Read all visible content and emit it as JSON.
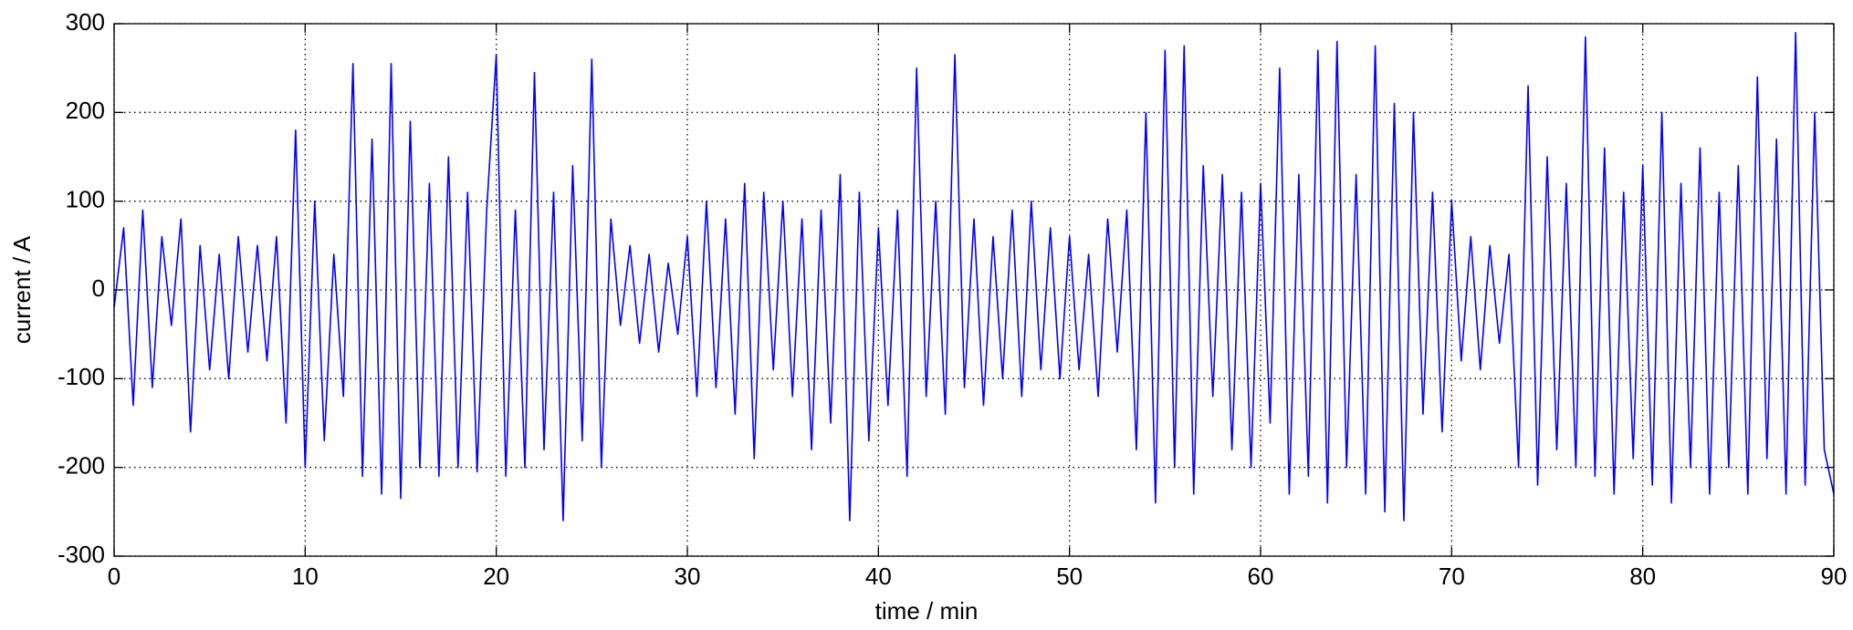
{
  "chart_data": {
    "type": "line",
    "xlabel": "time / min",
    "ylabel": "current / A",
    "xlim": [
      0,
      90
    ],
    "ylim": [
      -300,
      300
    ],
    "xticks": [
      0,
      10,
      20,
      30,
      40,
      50,
      60,
      70,
      80,
      90
    ],
    "yticks": [
      -300,
      -200,
      -100,
      0,
      100,
      200,
      300
    ],
    "grid": true,
    "color": "#0000ff",
    "x": [
      0,
      0.5,
      1,
      1.5,
      2,
      2.5,
      3,
      3.5,
      4,
      4.5,
      5,
      5.5,
      6,
      6.5,
      7,
      7.5,
      8,
      8.5,
      9,
      9.5,
      10,
      10.5,
      11,
      11.5,
      12,
      12.5,
      13,
      13.5,
      14,
      14.5,
      15,
      15.5,
      16,
      16.5,
      17,
      17.5,
      18,
      18.5,
      19,
      19.5,
      20,
      20.5,
      21,
      21.5,
      22,
      22.5,
      23,
      23.5,
      24,
      24.5,
      25,
      25.5,
      26,
      26.5,
      27,
      27.5,
      28,
      28.5,
      29,
      29.5,
      30,
      30.5,
      31,
      31.5,
      32,
      32.5,
      33,
      33.5,
      34,
      34.5,
      35,
      35.5,
      36,
      36.5,
      37,
      37.5,
      38,
      38.5,
      39,
      39.5,
      40,
      40.5,
      41,
      41.5,
      42,
      42.5,
      43,
      43.5,
      44,
      44.5,
      45,
      45.5,
      46,
      46.5,
      47,
      47.5,
      48,
      48.5,
      49,
      49.5,
      50,
      50.5,
      51,
      51.5,
      52,
      52.5,
      53,
      53.5,
      54,
      54.5,
      55,
      55.5,
      56,
      56.5,
      57,
      57.5,
      58,
      58.5,
      59,
      59.5,
      60,
      60.5,
      61,
      61.5,
      62,
      62.5,
      63,
      63.5,
      64,
      64.5,
      65,
      65.5,
      66,
      66.5,
      67,
      67.5,
      68,
      68.5,
      69,
      69.5,
      70,
      70.5,
      71,
      71.5,
      72,
      72.5,
      73,
      73.5,
      74,
      74.5,
      75,
      75.5,
      76,
      76.5,
      77,
      77.5,
      78,
      78.5,
      79,
      79.5,
      80,
      80.5,
      81,
      81.5,
      82,
      82.5,
      83,
      83.5,
      84,
      84.5,
      85,
      85.5,
      86,
      86.5,
      87,
      87.5,
      88,
      88.5,
      89,
      89.5,
      90
    ],
    "values": [
      -20,
      70,
      -130,
      90,
      -110,
      60,
      -40,
      80,
      -160,
      50,
      -90,
      40,
      -100,
      60,
      -70,
      50,
      -80,
      60,
      -150,
      180,
      -200,
      100,
      -170,
      40,
      -120,
      255,
      -210,
      170,
      -230,
      255,
      -235,
      190,
      -200,
      120,
      -210,
      150,
      -200,
      110,
      -205,
      90,
      265,
      -210,
      90,
      -200,
      245,
      -180,
      110,
      -260,
      140,
      -170,
      260,
      -200,
      80,
      -40,
      50,
      -60,
      40,
      -70,
      30,
      -50,
      60,
      -120,
      100,
      -110,
      80,
      -140,
      120,
      -190,
      110,
      -90,
      100,
      -120,
      80,
      -180,
      90,
      -150,
      130,
      -260,
      110,
      -170,
      70,
      -130,
      90,
      -210,
      250,
      -120,
      100,
      -140,
      265,
      -110,
      80,
      -130,
      60,
      -100,
      90,
      -120,
      100,
      -90,
      70,
      -100,
      60,
      -90,
      40,
      -120,
      80,
      -70,
      90,
      -180,
      200,
      -240,
      270,
      -200,
      275,
      -230,
      140,
      -120,
      130,
      -180,
      110,
      -200,
      120,
      -150,
      250,
      -230,
      130,
      -210,
      270,
      -240,
      280,
      -200,
      130,
      -230,
      275,
      -250,
      210,
      -260,
      200,
      -140,
      110,
      -160,
      100,
      -80,
      60,
      -90,
      50,
      -60,
      40,
      -200,
      230,
      -220,
      150,
      -180,
      120,
      -200,
      285,
      -210,
      160,
      -230,
      110,
      -190,
      140,
      -220,
      200,
      -240,
      120,
      -200,
      160,
      -230,
      110,
      -200,
      140,
      -230,
      240,
      -190,
      170,
      -230,
      290,
      -220,
      200,
      -180,
      -230
    ]
  }
}
